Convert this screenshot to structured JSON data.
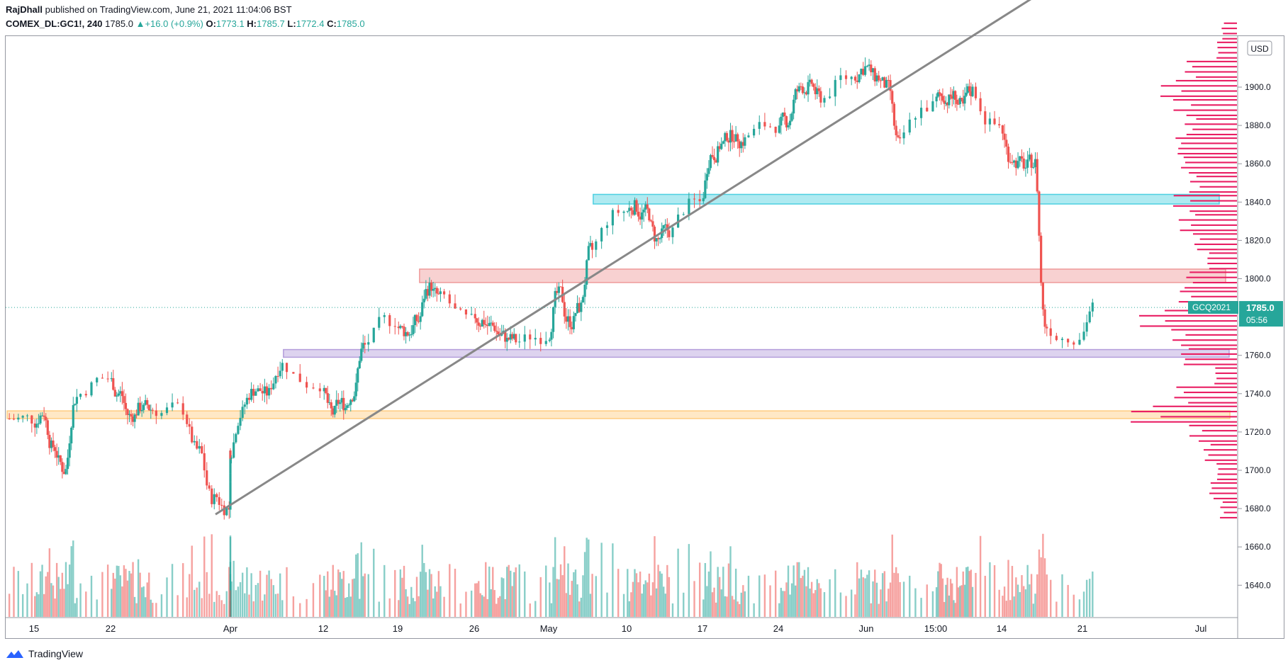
{
  "header": {
    "author": "RajDhall",
    "published_text": "published on TradingView.com, June 21, 2021 11:04:06 BST",
    "symbol": "COMEX_DL:GC1!, 240",
    "last": "1785.0",
    "change": "+16.0 (+0.9%)",
    "open_label": "O:",
    "open": "1773.1",
    "high_label": "H:",
    "high": "1785.7",
    "low_label": "L:",
    "low": "1772.4",
    "close_label": "C:",
    "close": "1785.0"
  },
  "footer": {
    "brand": "TradingView"
  },
  "colors": {
    "up": "#26a69a",
    "down": "#ef5350",
    "volume_profile": "#e91e63",
    "zone_blue": "#4dd0e1",
    "zone_red": "#ef9a9a",
    "zone_purple": "#b39ddb",
    "zone_orange": "#ffcc80",
    "trendline": "#888888",
    "price_tag": "#26a69a"
  },
  "chart_data": {
    "type": "candlestick",
    "currency_label": "USD",
    "ylim": [
      1627,
      1999
    ],
    "y_ticks": [
      "1900.0",
      "1880.0",
      "1860.0",
      "1840.0",
      "1820.0",
      "1800.0",
      "1760.0",
      "1740.0",
      "1720.0",
      "1700.0",
      "1680.0",
      "1660.0",
      "1640.0"
    ],
    "x_ticks": [
      "15",
      "22",
      "Apr",
      "12",
      "19",
      "26",
      "May",
      "10",
      "17",
      "24",
      "Jun",
      "15:00",
      "14",
      "21",
      "Jul"
    ],
    "last_price_label": "GCQ2021",
    "last_price": "1785.0",
    "countdown": "05:56",
    "anchors": [
      {
        "date": "Mar 12",
        "close": 1727
      },
      {
        "date": "Mar 15",
        "close": 1730
      },
      {
        "date": "Mar 16",
        "close": 1712
      },
      {
        "date": "Mar 17",
        "close": 1700
      },
      {
        "date": "Mar 18",
        "close": 1738
      },
      {
        "date": "Mar 19",
        "close": 1748
      },
      {
        "date": "Mar 22",
        "close": 1740
      },
      {
        "date": "Mar 23",
        "close": 1728
      },
      {
        "date": "Mar 24",
        "close": 1733
      },
      {
        "date": "Mar 25",
        "close": 1732
      },
      {
        "date": "Mar 26",
        "close": 1732
      },
      {
        "date": "Mar 29",
        "close": 1710
      },
      {
        "date": "Mar 30",
        "close": 1685
      },
      {
        "date": "Mar 31",
        "close": 1680
      },
      {
        "date": "Apr 1",
        "close": 1710
      },
      {
        "date": "Apr 5",
        "close": 1730
      },
      {
        "date": "Apr 6",
        "close": 1742
      },
      {
        "date": "Apr 7",
        "close": 1740
      },
      {
        "date": "Apr 8",
        "close": 1755
      },
      {
        "date": "Apr 9",
        "close": 1745
      },
      {
        "date": "Apr 12",
        "close": 1730
      },
      {
        "date": "Apr 13",
        "close": 1735
      },
      {
        "date": "Apr 14",
        "close": 1740
      },
      {
        "date": "Apr 15",
        "close": 1765
      },
      {
        "date": "Apr 16",
        "close": 1778
      },
      {
        "date": "Apr 19",
        "close": 1772
      },
      {
        "date": "Apr 20",
        "close": 1778
      },
      {
        "date": "Apr 21",
        "close": 1795
      },
      {
        "date": "Apr 22",
        "close": 1790
      },
      {
        "date": "Apr 23",
        "close": 1778
      },
      {
        "date": "Apr 26",
        "close": 1778
      },
      {
        "date": "Apr 27",
        "close": 1775
      },
      {
        "date": "Apr 28",
        "close": 1770
      },
      {
        "date": "Apr 29",
        "close": 1768
      },
      {
        "date": "Apr 30",
        "close": 1770
      },
      {
        "date": "May 3",
        "close": 1792
      },
      {
        "date": "May 4",
        "close": 1778
      },
      {
        "date": "May 5",
        "close": 1785
      },
      {
        "date": "May 6",
        "close": 1815
      },
      {
        "date": "May 7",
        "close": 1835
      },
      {
        "date": "May 10",
        "close": 1838
      },
      {
        "date": "May 11",
        "close": 1835
      },
      {
        "date": "May 12",
        "close": 1820
      },
      {
        "date": "May 13",
        "close": 1825
      },
      {
        "date": "May 14",
        "close": 1840
      },
      {
        "date": "May 17",
        "close": 1865
      },
      {
        "date": "May 18",
        "close": 1870
      },
      {
        "date": "May 19",
        "close": 1875
      },
      {
        "date": "May 20",
        "close": 1872
      },
      {
        "date": "May 21",
        "close": 1880
      },
      {
        "date": "May 24",
        "close": 1882
      },
      {
        "date": "May 25",
        "close": 1898
      },
      {
        "date": "May 26",
        "close": 1900
      },
      {
        "date": "May 27",
        "close": 1895
      },
      {
        "date": "May 28",
        "close": 1905
      },
      {
        "date": "May 31",
        "close": 1910
      },
      {
        "date": "Jun 1",
        "close": 1905
      },
      {
        "date": "Jun 2",
        "close": 1900
      },
      {
        "date": "Jun 3",
        "close": 1870
      },
      {
        "date": "Jun 4",
        "close": 1890
      },
      {
        "date": "Jun 7",
        "close": 1895
      },
      {
        "date": "Jun 8",
        "close": 1895
      },
      {
        "date": "Jun 9",
        "close": 1890
      },
      {
        "date": "Jun 10",
        "close": 1898
      },
      {
        "date": "Jun 11",
        "close": 1880
      },
      {
        "date": "Jun 14",
        "close": 1863
      },
      {
        "date": "Jun 15",
        "close": 1860
      },
      {
        "date": "Jun 16",
        "close": 1860
      },
      {
        "date": "Jun 17",
        "close": 1775
      },
      {
        "date": "Jun 18",
        "close": 1770
      },
      {
        "date": "Jun 21",
        "close": 1785
      }
    ],
    "zones": [
      {
        "name": "blue",
        "top": 1844,
        "bottom": 1839,
        "from_date": "May 7"
      },
      {
        "name": "red",
        "top": 1805,
        "bottom": 1798,
        "from_date": "Apr 21"
      },
      {
        "name": "purple",
        "top": 1763,
        "bottom": 1759,
        "from_date": "Apr 9"
      },
      {
        "name": "orange",
        "top": 1731,
        "bottom": 1727,
        "from_date": "Mar 12"
      }
    ],
    "trendline": {
      "from": {
        "date": "Mar 31",
        "price": 1677
      },
      "to": {
        "date": "Jul 1",
        "price": 2002
      }
    },
    "volume_profile": [
      {
        "price": 1680,
        "v": 0.16
      },
      {
        "price": 1690,
        "v": 0.27
      },
      {
        "price": 1700,
        "v": 0.2
      },
      {
        "price": 1710,
        "v": 0.32
      },
      {
        "price": 1720,
        "v": 0.45
      },
      {
        "price": 1730,
        "v": 1.0
      },
      {
        "price": 1740,
        "v": 0.6
      },
      {
        "price": 1750,
        "v": 0.22
      },
      {
        "price": 1760,
        "v": 0.55
      },
      {
        "price": 1770,
        "v": 0.62
      },
      {
        "price": 1780,
        "v": 0.92
      },
      {
        "price": 1790,
        "v": 0.55
      },
      {
        "price": 1800,
        "v": 0.5
      },
      {
        "price": 1810,
        "v": 0.3
      },
      {
        "price": 1820,
        "v": 0.42
      },
      {
        "price": 1830,
        "v": 0.55
      },
      {
        "price": 1840,
        "v": 0.6
      },
      {
        "price": 1850,
        "v": 0.45
      },
      {
        "price": 1860,
        "v": 0.55
      },
      {
        "price": 1870,
        "v": 0.6
      },
      {
        "price": 1880,
        "v": 0.5
      },
      {
        "price": 1890,
        "v": 0.6
      },
      {
        "price": 1900,
        "v": 0.72
      },
      {
        "price": 1910,
        "v": 0.5
      },
      {
        "price": 1920,
        "v": 0.2
      },
      {
        "price": 1930,
        "v": 0.15
      }
    ]
  }
}
